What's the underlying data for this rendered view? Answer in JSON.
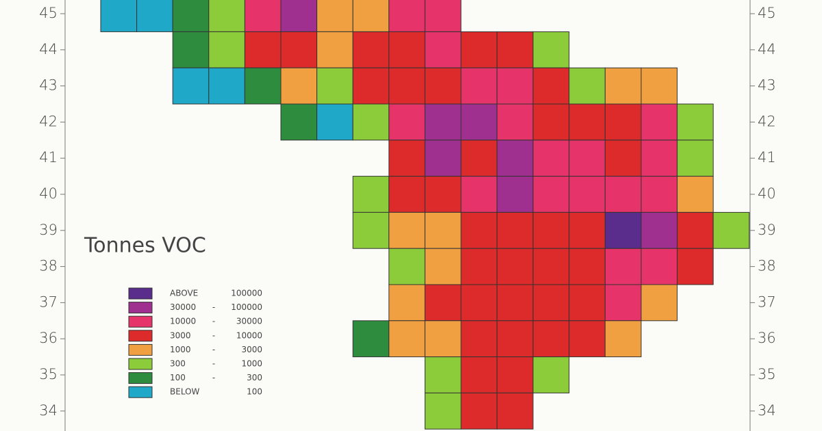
{
  "map": {
    "title": "Tonnes VOC",
    "lat_ticks": [
      45,
      44,
      43,
      42,
      41,
      40,
      39,
      38,
      37,
      36,
      35,
      34
    ],
    "legend": [
      {
        "left": "ABOVE",
        "right": "100000",
        "color": "#5a2c8c"
      },
      {
        "left": "30000",
        "dash": "-",
        "right": "100000",
        "color": "#a0308f"
      },
      {
        "left": "10000",
        "dash": "-",
        "right": "30000",
        "color": "#e6336a"
      },
      {
        "left": "3000",
        "dash": "-",
        "right": "10000",
        "color": "#dd2a2a"
      },
      {
        "left": "1000",
        "dash": "-",
        "right": "3000",
        "color": "#f0a040"
      },
      {
        "left": "300",
        "dash": "-",
        "right": "1000",
        "color": "#8ccc3a"
      },
      {
        "left": "100",
        "dash": "-",
        "right": "300",
        "color": "#2e8c3e"
      },
      {
        "left": "BELOW",
        "right": "100",
        "color": "#20a8c8"
      }
    ],
    "grid": [
      [
        7,
        7,
        6,
        5,
        2,
        1,
        4,
        4,
        2,
        2,
        null,
        null,
        null,
        null,
        null,
        null,
        null,
        null
      ],
      [
        null,
        null,
        6,
        5,
        3,
        3,
        4,
        3,
        3,
        2,
        3,
        3,
        5,
        null,
        null,
        null,
        null,
        null
      ],
      [
        null,
        null,
        7,
        7,
        6,
        4,
        5,
        3,
        3,
        3,
        2,
        2,
        3,
        5,
        4,
        4,
        null,
        null
      ],
      [
        null,
        null,
        null,
        null,
        null,
        6,
        7,
        5,
        2,
        1,
        1,
        2,
        3,
        3,
        3,
        2,
        5,
        null
      ],
      [
        null,
        null,
        null,
        null,
        null,
        null,
        null,
        null,
        3,
        1,
        3,
        1,
        2,
        2,
        3,
        2,
        5,
        null
      ],
      [
        null,
        null,
        null,
        null,
        null,
        null,
        null,
        5,
        3,
        3,
        2,
        1,
        2,
        2,
        2,
        2,
        4,
        null
      ],
      [
        null,
        null,
        null,
        null,
        null,
        null,
        null,
        5,
        4,
        4,
        3,
        3,
        3,
        3,
        0,
        1,
        3,
        5
      ],
      [
        null,
        null,
        null,
        null,
        null,
        null,
        null,
        null,
        5,
        4,
        3,
        3,
        3,
        3,
        2,
        2,
        3,
        null
      ],
      [
        null,
        null,
        null,
        null,
        null,
        null,
        null,
        null,
        4,
        3,
        3,
        3,
        3,
        3,
        2,
        4,
        null,
        null
      ],
      [
        null,
        null,
        null,
        null,
        null,
        null,
        null,
        6,
        4,
        4,
        3,
        3,
        3,
        3,
        4,
        null,
        null,
        null
      ],
      [
        null,
        null,
        null,
        null,
        null,
        null,
        null,
        null,
        null,
        5,
        3,
        3,
        5,
        null,
        null,
        null,
        null,
        null
      ],
      [
        null,
        null,
        null,
        null,
        null,
        null,
        null,
        null,
        null,
        5,
        3,
        3,
        null,
        null,
        null,
        null,
        null,
        null
      ]
    ]
  }
}
